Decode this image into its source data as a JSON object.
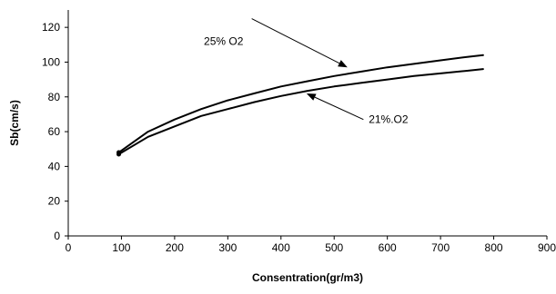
{
  "chart_data": {
    "type": "line",
    "xlabel": "Consentration(gr/m3)",
    "ylabel": "Sb(cm/s)",
    "xlim": [
      0,
      900
    ],
    "ylim": [
      0,
      130
    ],
    "xticks": [
      "0",
      "100",
      "200",
      "300",
      "400",
      "500",
      "600",
      "700",
      "800",
      "900"
    ],
    "yticks": [
      "0",
      "20",
      "40",
      "60",
      "80",
      "100",
      "120"
    ],
    "grid": false,
    "series": [
      {
        "name": "25% O2",
        "color": "#000000",
        "x": [
          95,
          150,
          200,
          250,
          300,
          350,
          400,
          450,
          500,
          550,
          600,
          650,
          700,
          750,
          780
        ],
        "y": [
          48,
          60,
          67,
          73,
          78,
          82,
          86,
          89,
          92,
          94.5,
          97,
          99,
          101,
          103,
          104
        ]
      },
      {
        "name": "21% O2",
        "color": "#000000",
        "x": [
          95,
          150,
          200,
          250,
          300,
          350,
          400,
          450,
          500,
          550,
          600,
          650,
          700,
          750,
          780
        ],
        "y": [
          47,
          57,
          63,
          69,
          73,
          77,
          80.5,
          83.5,
          86,
          88,
          90,
          92,
          93.5,
          95,
          96
        ]
      }
    ],
    "annotations": [
      {
        "text": "25% O2",
        "series": "25% O2",
        "label_x": 255,
        "label_y": 110,
        "arrow_from": [
          345,
          125
        ],
        "arrow_to": [
          525,
          97
        ]
      },
      {
        "text": "21%.O2",
        "series": "21% O2",
        "label_x": 565,
        "label_y": 65,
        "arrow_from": [
          555,
          67
        ],
        "arrow_to": [
          448,
          82
        ]
      }
    ]
  }
}
